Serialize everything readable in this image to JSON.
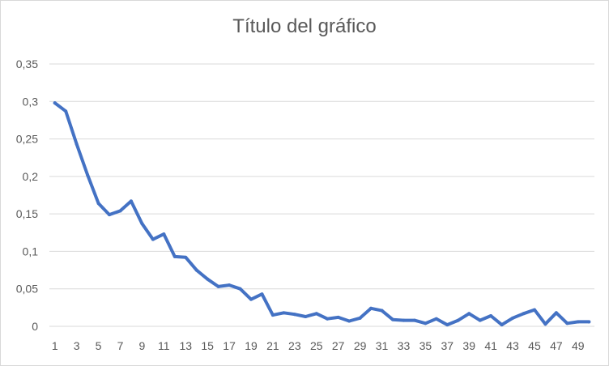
{
  "chart_data": {
    "type": "line",
    "title": "Título del gráfico",
    "xlabel": "",
    "ylabel": "",
    "x": [
      1,
      2,
      3,
      4,
      5,
      6,
      7,
      8,
      9,
      10,
      11,
      12,
      13,
      14,
      15,
      16,
      17,
      18,
      19,
      20,
      21,
      22,
      23,
      24,
      25,
      26,
      27,
      28,
      29,
      30,
      31,
      32,
      33,
      34,
      35,
      36,
      37,
      38,
      39,
      40,
      41,
      42,
      43,
      44,
      45,
      46,
      47,
      48,
      49,
      50
    ],
    "x_tick_labels": [
      "1",
      "3",
      "5",
      "7",
      "9",
      "11",
      "13",
      "15",
      "17",
      "19",
      "21",
      "23",
      "25",
      "27",
      "29",
      "31",
      "33",
      "35",
      "37",
      "39",
      "41",
      "43",
      "45",
      "47",
      "49"
    ],
    "y_tick_labels": [
      "0",
      "0,05",
      "0,1",
      "0,15",
      "0,2",
      "0,25",
      "0,3",
      "0,35"
    ],
    "ylim": [
      0,
      0.35
    ],
    "grid": true,
    "legend": "none",
    "series": [
      {
        "color": "#4472c4",
        "values": [
          0.298,
          0.287,
          0.243,
          0.202,
          0.164,
          0.149,
          0.154,
          0.167,
          0.137,
          0.116,
          0.123,
          0.093,
          0.092,
          0.075,
          0.063,
          0.053,
          0.055,
          0.05,
          0.036,
          0.043,
          0.015,
          0.018,
          0.016,
          0.013,
          0.017,
          0.01,
          0.012,
          0.007,
          0.011,
          0.024,
          0.021,
          0.009,
          0.008,
          0.008,
          0.004,
          0.01,
          0.002,
          0.008,
          0.017,
          0.008,
          0.014,
          0.002,
          0.011,
          0.017,
          0.022,
          0.003,
          0.018,
          0.004,
          0.006,
          0.006
        ]
      }
    ]
  },
  "colors": {
    "gridline": "#d9d9d9",
    "tick_text": "#595959",
    "axis": "#d9d9d9"
  }
}
